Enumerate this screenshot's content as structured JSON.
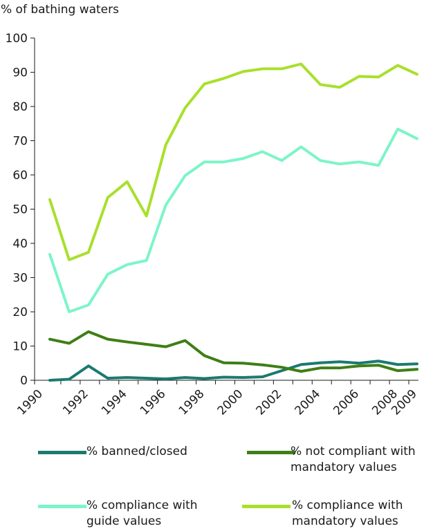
{
  "chart_data": {
    "type": "line",
    "ylabel": "% of bathing waters",
    "xlabel": "",
    "ylim": [
      0,
      100
    ],
    "yticks": [
      0,
      10,
      20,
      30,
      40,
      50,
      60,
      70,
      80,
      90,
      100
    ],
    "xlim": [
      1990,
      2009
    ],
    "xticks": [
      1990,
      1992,
      1994,
      1996,
      1998,
      2000,
      2002,
      2004,
      2006,
      2008,
      2009
    ],
    "grid": false,
    "legend_position": "bottom",
    "x": [
      1990,
      1991,
      1992,
      1993,
      1994,
      1995,
      1996,
      1997,
      1998,
      1999,
      2000,
      2001,
      2002,
      2003,
      2004,
      2005,
      2006,
      2007,
      2008,
      2009
    ],
    "series": [
      {
        "name": "% banned/closed",
        "color": "#1a7a6e",
        "values": [
          0.0,
          0.3,
          4.2,
          0.6,
          0.8,
          0.6,
          0.4,
          0.8,
          0.5,
          0.9,
          0.8,
          1.0,
          2.8,
          4.6,
          5.1,
          5.4,
          5.0,
          5.6,
          4.6,
          4.8
        ]
      },
      {
        "name": "% not compliant with mandatory values",
        "color": "#3e7e16",
        "values": [
          12.0,
          10.8,
          14.2,
          12.0,
          11.2,
          10.5,
          9.8,
          11.6,
          7.2,
          5.1,
          5.0,
          4.5,
          3.8,
          2.6,
          3.6,
          3.6,
          4.2,
          4.4,
          2.8,
          3.2
        ]
      },
      {
        "name": "% compliance with guide values",
        "color": "#7cf5c8",
        "values": [
          36.8,
          20.0,
          22.0,
          31.0,
          33.8,
          35.0,
          51.2,
          59.8,
          63.8,
          63.8,
          64.8,
          66.8,
          64.2,
          68.2,
          64.2,
          63.2,
          63.8,
          62.8,
          73.4,
          70.6
        ]
      },
      {
        "name": "% compliance with mandatory values",
        "color": "#a8e02c",
        "values": [
          52.8,
          35.2,
          37.4,
          53.4,
          58.0,
          48.0,
          68.8,
          79.6,
          86.6,
          88.2,
          90.2,
          91.0,
          91.0,
          92.4,
          86.4,
          85.6,
          88.8,
          88.6,
          92.0,
          89.4
        ]
      }
    ]
  }
}
